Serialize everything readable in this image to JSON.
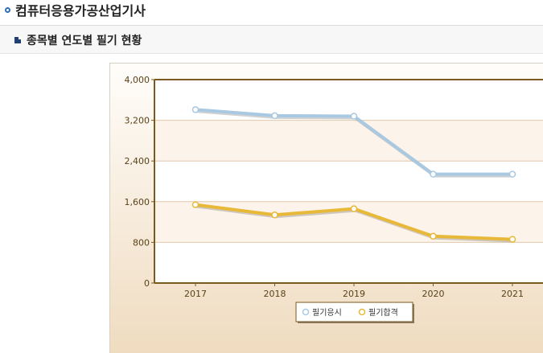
{
  "page": {
    "title": "컴퓨터응용가공산업기사",
    "section_title": "종목별 연도별 필기 현황"
  },
  "colors": {
    "series_applicants": "#a9c9e3",
    "series_passers": "#e8b938",
    "plot_border": "#7a5a1e",
    "band_light": "#fcf3ea",
    "band_white": "#ffffff",
    "grid": "#e0c9ad"
  },
  "chart_data": {
    "type": "line",
    "title": "",
    "xlabel": "",
    "ylabel": "",
    "categories": [
      "2017",
      "2018",
      "2019",
      "2020",
      "2021"
    ],
    "ylim": [
      0,
      4000
    ],
    "yticks": [
      0,
      800,
      1600,
      2400,
      3200,
      4000
    ],
    "ytick_labels": [
      "0",
      "800",
      "1,600",
      "2,400",
      "3,200",
      "4,000"
    ],
    "series": [
      {
        "name": "필기응시",
        "values": [
          3410,
          3290,
          3280,
          2140,
          2140
        ]
      },
      {
        "name": "필기합격",
        "values": [
          1540,
          1340,
          1460,
          920,
          860
        ]
      }
    ],
    "legend_position": "bottom-center",
    "grid": true
  }
}
